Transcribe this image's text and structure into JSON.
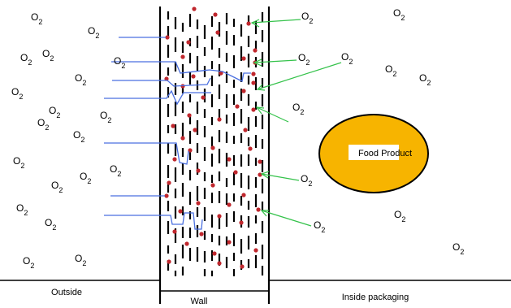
{
  "labels": {
    "outside": "Outside",
    "wall": "Wall",
    "inside": "Inside packaging",
    "food": "Food Product"
  },
  "molecule": {
    "main": "O",
    "sub": "2"
  },
  "colors": {
    "wall": "#000000",
    "dots": "#c0272d",
    "paths": "#4a6fe0",
    "arrows": "#34c24a",
    "food_fill": "#f7b400",
    "food_stroke": "#000000"
  }
}
